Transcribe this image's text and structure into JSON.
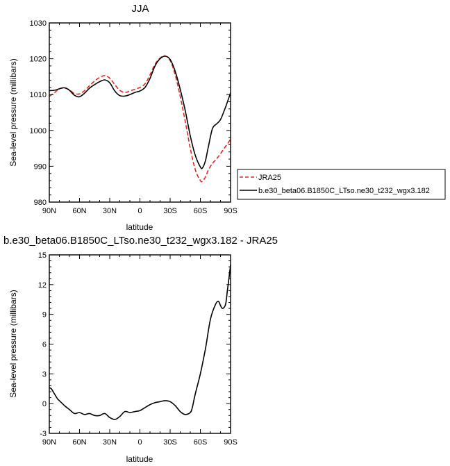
{
  "chart_data": [
    {
      "type": "line",
      "title": "JJA",
      "xlabel": "latitude",
      "ylabel": "Sea-level pressure (millibars)",
      "xlim": [
        90,
        -90
      ],
      "ylim": [
        980,
        1030
      ],
      "x_ticks": [
        90,
        60,
        30,
        0,
        -30,
        -60,
        -90
      ],
      "x_tick_labels": [
        "90N",
        "60N",
        "30N",
        "0",
        "30S",
        "60S",
        "90S"
      ],
      "y_ticks": [
        980,
        990,
        1000,
        1010,
        1020,
        1030
      ],
      "y_tick_labels": [
        "980",
        "990",
        "1000",
        "1010",
        "1020",
        "1030"
      ],
      "legend": "right",
      "series": [
        {
          "name": "JRA25",
          "color": "#e8261c",
          "dash": "dashed",
          "x": [
            90,
            85,
            80,
            75,
            70,
            65,
            60,
            55,
            50,
            45,
            40,
            35,
            30,
            25,
            20,
            15,
            10,
            5,
            0,
            -5,
            -10,
            -15,
            -20,
            -25,
            -30,
            -35,
            -40,
            -45,
            -50,
            -55,
            -60,
            -62,
            -65,
            -68,
            -72,
            -76,
            -80,
            -85,
            -90
          ],
          "y": [
            1009.5,
            1010.5,
            1011.6,
            1011.9,
            1011.3,
            1010.3,
            1010.2,
            1011.1,
            1012.5,
            1013.8,
            1014.8,
            1015.3,
            1014.6,
            1012.8,
            1011.2,
            1010.6,
            1011.0,
            1011.5,
            1012.0,
            1013.0,
            1015.5,
            1018.5,
            1020.2,
            1020.8,
            1019.5,
            1015.5,
            1009.5,
            1002.5,
            995.0,
            989.0,
            986.0,
            985.8,
            987.0,
            989.0,
            990.8,
            992.0,
            993.5,
            995.5,
            997.5
          ]
        },
        {
          "name": "b.e30_beta06.B1850C_LTso.ne30_t232_wgx3.182",
          "color": "#000000",
          "dash": "solid",
          "x": [
            90,
            85,
            80,
            75,
            70,
            65,
            60,
            55,
            50,
            45,
            40,
            35,
            30,
            25,
            20,
            15,
            10,
            5,
            0,
            -5,
            -10,
            -15,
            -20,
            -25,
            -30,
            -35,
            -40,
            -45,
            -50,
            -55,
            -60,
            -62,
            -65,
            -68,
            -72,
            -76,
            -80,
            -85,
            -90
          ],
          "y": [
            1011.1,
            1011.2,
            1011.6,
            1011.9,
            1011.2,
            1009.8,
            1009.4,
            1010.4,
            1011.8,
            1012.8,
            1013.6,
            1014.1,
            1013.3,
            1011.0,
            1009.7,
            1009.6,
            1010.0,
            1010.6,
            1011.0,
            1012.0,
            1014.5,
            1018.0,
            1020.0,
            1020.7,
            1019.8,
            1016.5,
            1011.5,
            1005.5,
            998.5,
            993.0,
            989.8,
            989.5,
            991.5,
            995.5,
            1000.5,
            1001.8,
            1003.0,
            1006.5,
            1010.5
          ]
        }
      ]
    },
    {
      "type": "line",
      "title": "b.e30_beta06.B1850C_LTso.ne30_t232_wgx3.182 - JRA25",
      "xlabel": "latitude",
      "ylabel": "Sea-level pressure (millibars)",
      "xlim": [
        90,
        -90
      ],
      "ylim": [
        -3,
        15
      ],
      "x_ticks": [
        90,
        60,
        30,
        0,
        -30,
        -60,
        -90
      ],
      "x_tick_labels": [
        "90N",
        "60N",
        "30N",
        "0",
        "30S",
        "60S",
        "90S"
      ],
      "y_ticks": [
        -3,
        0,
        3,
        6,
        9,
        12,
        15
      ],
      "y_tick_labels": [
        "-3",
        "0",
        "3",
        "6",
        "9",
        "12",
        "15"
      ],
      "series": [
        {
          "color": "#000000",
          "dash": "solid",
          "x": [
            90,
            88,
            85,
            82,
            80,
            75,
            70,
            65,
            60,
            55,
            50,
            45,
            40,
            35,
            30,
            25,
            20,
            15,
            10,
            5,
            0,
            -5,
            -10,
            -15,
            -20,
            -25,
            -30,
            -35,
            -40,
            -45,
            -50,
            -52,
            -55,
            -60,
            -65,
            -70,
            -75,
            -78,
            -80,
            -82,
            -85,
            -87,
            -90
          ],
          "y": [
            1.6,
            1.5,
            1.0,
            0.5,
            0.3,
            -0.2,
            -0.6,
            -1.0,
            -0.9,
            -1.1,
            -1.0,
            -1.2,
            -1.2,
            -1.0,
            -1.4,
            -1.6,
            -1.3,
            -0.8,
            -0.9,
            -0.8,
            -0.7,
            -0.4,
            -0.1,
            0.1,
            0.2,
            0.3,
            0.2,
            -0.2,
            -0.8,
            -1.1,
            -0.9,
            -0.4,
            1.0,
            3.0,
            5.5,
            8.5,
            10.0,
            10.3,
            9.9,
            9.6,
            10.0,
            11.5,
            14.0
          ]
        }
      ]
    }
  ]
}
